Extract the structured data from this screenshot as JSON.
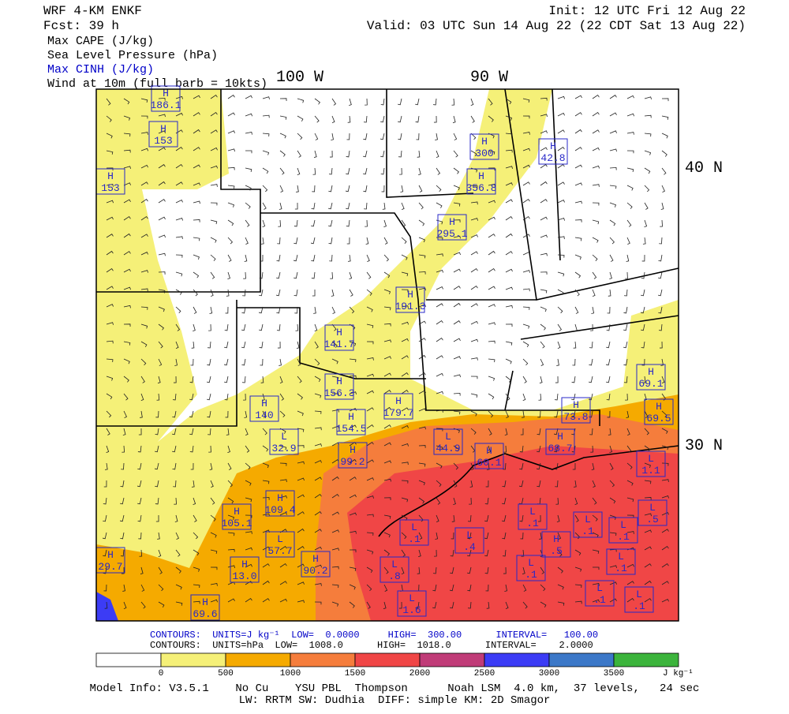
{
  "header": {
    "left": [
      "WRF 4-KM ENKF",
      "Fcst:   39 h"
    ],
    "right": [
      "Init: 12 UTC Fri 12 Aug 22",
      "Valid: 03 UTC Sun 14 Aug 22 (22 CDT Sat 13 Aug 22)"
    ],
    "fields": [
      {
        "text": "Max CAPE (J/kg)",
        "color": "#000000"
      },
      {
        "text": "Sea Level Pressure (hPa)",
        "color": "#000000"
      },
      {
        "text": "Max CINH (J/kg)",
        "color": "#0000c8"
      },
      {
        "text": "Wind at 10m (full barb = 10kts)",
        "color": "#000000"
      }
    ]
  },
  "map": {
    "longitude_labels": [
      "100 W",
      "90 W"
    ],
    "latitude_labels": [
      "40 N",
      "30 N"
    ],
    "centers": [
      {
        "type": "H",
        "value": "186.1"
      },
      {
        "type": "H",
        "value": "153"
      },
      {
        "type": "H",
        "value": "153"
      },
      {
        "type": "H",
        "value": "300"
      },
      {
        "type": "H",
        "value": "42.8"
      },
      {
        "type": "H",
        "value": "356.8"
      },
      {
        "type": "H",
        "value": "295.1"
      },
      {
        "type": "H",
        "value": "191.3"
      },
      {
        "type": "H",
        "value": "141.7"
      },
      {
        "type": "H",
        "value": "156.3"
      },
      {
        "type": "H",
        "value": "140"
      },
      {
        "type": "H",
        "value": "179.7"
      },
      {
        "type": "H",
        "value": "73.8"
      },
      {
        "type": "H",
        "value": "69.1"
      },
      {
        "type": "H",
        "value": "69.5"
      },
      {
        "type": "L",
        "value": "32.9"
      },
      {
        "type": "H",
        "value": "154.5"
      },
      {
        "type": "H",
        "value": "99.2"
      },
      {
        "type": "L",
        "value": "44.9"
      },
      {
        "type": "H",
        "value": "60.1"
      },
      {
        "type": "H",
        "value": "68.7"
      },
      {
        "type": "H",
        "value": "109.4"
      },
      {
        "type": "H",
        "value": "105.1"
      },
      {
        "type": "L",
        "value": "57.7"
      },
      {
        "type": "H",
        "value": "90.2"
      },
      {
        "type": "H",
        "value": "13.0"
      },
      {
        "type": "H",
        "value": "29.7"
      },
      {
        "type": "H",
        "value": "69.6"
      },
      {
        "type": "L",
        "value": ".1"
      },
      {
        "type": "L",
        "value": ".4"
      },
      {
        "type": "L",
        "value": ".1"
      },
      {
        "type": "L",
        "value": ".8"
      },
      {
        "type": "L",
        "value": "1.6"
      },
      {
        "type": "H",
        "value": ".5"
      },
      {
        "type": "L",
        "value": ".1"
      },
      {
        "type": "L",
        "value": ".1"
      },
      {
        "type": "L",
        "value": ".5"
      },
      {
        "type": "L",
        "value": ".1"
      },
      {
        "type": "L",
        "value": ".1"
      },
      {
        "type": "L",
        "value": ".1"
      },
      {
        "type": "L",
        "value": ".1"
      },
      {
        "type": "L",
        "value": "1.1"
      }
    ]
  },
  "footer": {
    "contours_cinh": "CONTOURS:  UNITS=J kg⁻¹  LOW=  0.0000     HIGH=  300.00      INTERVAL=   100.00",
    "contours_slp": "CONTOURS:  UNITS=hPa  LOW=  1008.0      HIGH=  1018.0      INTERVAL=    2.0000",
    "model_info": [
      "Model Info: V3.5.1    No Cu    YSU PBL  Thompson      Noah LSM  4.0 km,  37 levels,   24 sec",
      "LW: RRTM SW: Dudhia  DIFF: simple KM: 2D Smagor"
    ]
  },
  "colorbar": {
    "colors": [
      "#ffffff",
      "#f5f078",
      "#f5aa00",
      "#f57d3c",
      "#f04646",
      "#c03c78",
      "#3c3cf5",
      "#3c78c8",
      "#3cb43c"
    ],
    "ticks": [
      "0",
      "500",
      "1000",
      "1500",
      "2000",
      "2500",
      "3000",
      "3500"
    ],
    "unit": "J kg⁻¹"
  }
}
